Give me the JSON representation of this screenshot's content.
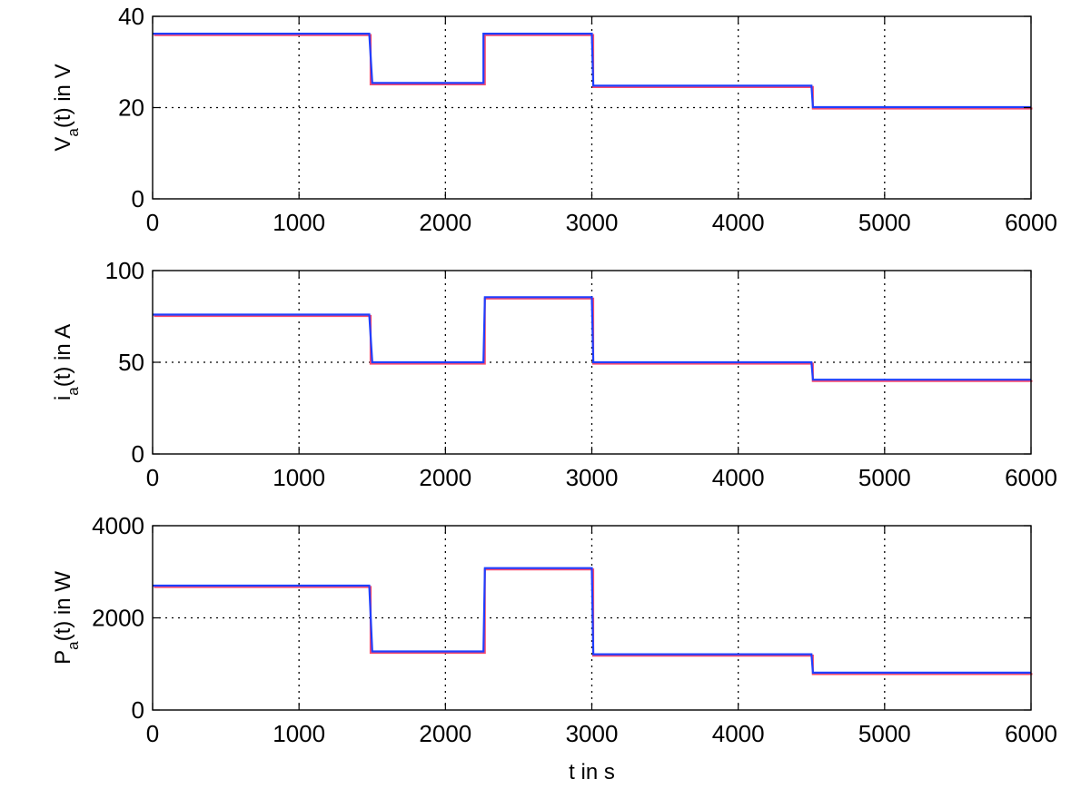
{
  "chart_data": [
    {
      "type": "line",
      "ylabel_main": "V",
      "ylabel_sub": "a",
      "ylabel_rest": "(t) in V",
      "xlim": [
        0,
        6000
      ],
      "ylim": [
        0,
        40
      ],
      "xticks": [
        0,
        1000,
        2000,
        3000,
        4000,
        5000,
        6000
      ],
      "yticks": [
        0,
        20,
        40
      ],
      "grid": true,
      "series": [
        {
          "color": "#ff4a6a",
          "x": [
            0,
            1480,
            1480,
            2260,
            2260,
            3000,
            3000,
            4500,
            4500,
            6000
          ],
          "y": [
            36.2,
            36.2,
            25.4,
            25.4,
            36.2,
            36.2,
            24.8,
            24.8,
            20.1,
            20.1
          ]
        },
        {
          "color": "#1f3fff",
          "x": [
            0,
            1480,
            1500,
            2260,
            2260,
            3000,
            3010,
            4500,
            4510,
            6000
          ],
          "y": [
            36.2,
            36.2,
            25.4,
            25.4,
            36.2,
            36.2,
            24.8,
            24.8,
            20.1,
            20.1
          ]
        }
      ]
    },
    {
      "type": "line",
      "ylabel_main": "i",
      "ylabel_sub": "a",
      "ylabel_rest": "(t) in A",
      "xlim": [
        0,
        6000
      ],
      "ylim": [
        0,
        100
      ],
      "xticks": [
        0,
        1000,
        2000,
        3000,
        4000,
        5000,
        6000
      ],
      "yticks": [
        0,
        50,
        100
      ],
      "grid": true,
      "series": [
        {
          "color": "#ff4a6a",
          "x": [
            0,
            1480,
            1480,
            2260,
            2260,
            3000,
            3000,
            4500,
            4500,
            6000
          ],
          "y": [
            76,
            76,
            50,
            50,
            85.5,
            85.5,
            50,
            50,
            40.5,
            40.5
          ]
        },
        {
          "color": "#1f3fff",
          "x": [
            0,
            1480,
            1500,
            2260,
            2270,
            3000,
            3010,
            4500,
            4510,
            6000
          ],
          "y": [
            76,
            76,
            50,
            50,
            85.5,
            85.5,
            50,
            50,
            40.5,
            40.5
          ]
        }
      ]
    },
    {
      "type": "line",
      "ylabel_main": "P",
      "ylabel_sub": "a",
      "ylabel_rest": "(t) in W",
      "xlim": [
        0,
        6000
      ],
      "ylim": [
        0,
        4000
      ],
      "xticks": [
        0,
        1000,
        2000,
        3000,
        4000,
        5000,
        6000
      ],
      "yticks": [
        0,
        2000,
        4000
      ],
      "xlabel": "t in s",
      "grid": true,
      "series": [
        {
          "color": "#ff4a6a",
          "x": [
            0,
            1480,
            1480,
            2260,
            2260,
            3000,
            3000,
            4500,
            4500,
            6000
          ],
          "y": [
            2700,
            2700,
            1270,
            1270,
            3080,
            3080,
            1210,
            1210,
            810,
            810
          ]
        },
        {
          "color": "#1f3fff",
          "x": [
            0,
            1480,
            1500,
            2260,
            2270,
            3000,
            3010,
            4500,
            4510,
            6000
          ],
          "y": [
            2700,
            2700,
            1270,
            1270,
            3080,
            3080,
            1210,
            1210,
            810,
            810
          ]
        }
      ]
    }
  ]
}
